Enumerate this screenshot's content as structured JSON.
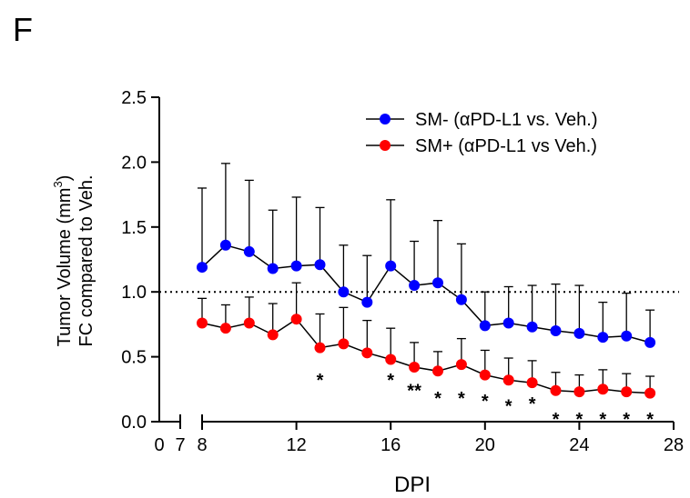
{
  "panel_label": "F",
  "chart_data": {
    "type": "line",
    "xlabel": "DPI",
    "ylabel_line1": "Tumor Volume (mm",
    "ylabel_sup": "3",
    "ylabel_close": ")",
    "ylabel_line2": "FC compared to Veh.",
    "ylim": [
      0,
      2.5
    ],
    "yticks": [
      "0.0",
      "0.5",
      "1.0",
      "1.5",
      "2.0",
      "2.5"
    ],
    "xlim": [
      8,
      28
    ],
    "xticks": [
      "8",
      "12",
      "16",
      "20",
      "24",
      "28"
    ],
    "x_break_ticks": [
      "0",
      "7"
    ],
    "reference_line": 1.0,
    "legend_position": "top-right",
    "series": [
      {
        "name": "SM- (αPD-L1 vs. Veh.)",
        "color": "#0000ff",
        "x": [
          8,
          9,
          10,
          11,
          12,
          13,
          14,
          15,
          16,
          17,
          18,
          19,
          20,
          21,
          22,
          23,
          24,
          25,
          26,
          27
        ],
        "y": [
          1.19,
          1.36,
          1.31,
          1.18,
          1.2,
          1.21,
          1.0,
          0.92,
          1.2,
          1.05,
          1.07,
          0.94,
          0.74,
          0.76,
          0.73,
          0.7,
          0.68,
          0.65,
          0.66,
          0.61
        ],
        "err_upper": [
          1.8,
          1.99,
          1.86,
          1.63,
          1.73,
          1.65,
          1.36,
          1.28,
          1.71,
          1.39,
          1.55,
          1.37,
          1.0,
          1.04,
          1.05,
          1.06,
          1.05,
          0.92,
          0.99,
          0.86
        ]
      },
      {
        "name": "SM+ (αPD-L1 vs Veh.)",
        "color": "#ff0000",
        "x": [
          8,
          9,
          10,
          11,
          12,
          13,
          14,
          15,
          16,
          17,
          18,
          19,
          20,
          21,
          22,
          23,
          24,
          25,
          26,
          27
        ],
        "y": [
          0.76,
          0.72,
          0.76,
          0.67,
          0.79,
          0.57,
          0.6,
          0.53,
          0.48,
          0.42,
          0.39,
          0.44,
          0.36,
          0.32,
          0.3,
          0.24,
          0.23,
          0.25,
          0.23,
          0.22
        ],
        "err_upper": [
          0.95,
          0.9,
          0.96,
          0.91,
          1.07,
          0.83,
          0.88,
          0.78,
          0.72,
          0.61,
          0.54,
          0.64,
          0.55,
          0.49,
          0.47,
          0.38,
          0.36,
          0.4,
          0.37,
          0.35
        ]
      }
    ],
    "annotations": [
      {
        "text": "*",
        "x": 13,
        "y": 0.3
      },
      {
        "text": "*",
        "x": 16,
        "y": 0.3
      },
      {
        "text": "**",
        "x": 17,
        "y": 0.22
      },
      {
        "text": "*",
        "x": 18,
        "y": 0.16
      },
      {
        "text": "*",
        "x": 19,
        "y": 0.16
      },
      {
        "text": "*",
        "x": 20,
        "y": 0.14
      },
      {
        "text": "*",
        "x": 21,
        "y": 0.1
      },
      {
        "text": "*",
        "x": 22,
        "y": 0.12
      },
      {
        "text": "*",
        "x": 23,
        "y": 0.0
      },
      {
        "text": "*",
        "x": 24,
        "y": 0.0
      },
      {
        "text": "*",
        "x": 25,
        "y": 0.0
      },
      {
        "text": "*",
        "x": 26,
        "y": 0.0
      },
      {
        "text": "*",
        "x": 27,
        "y": 0.0
      }
    ]
  }
}
